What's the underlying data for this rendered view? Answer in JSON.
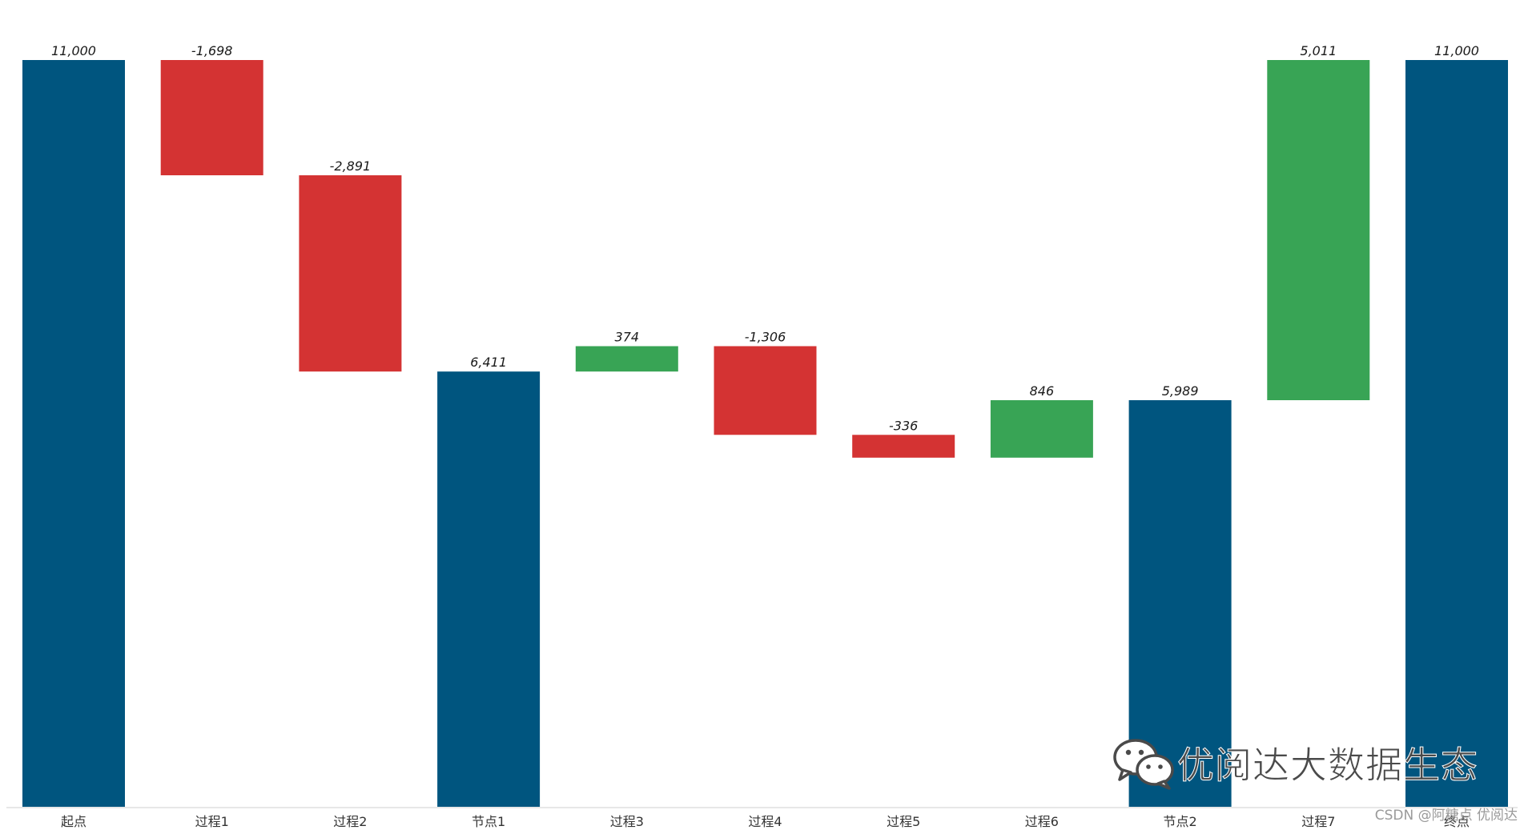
{
  "chart_data": {
    "type": "bar",
    "subtype": "waterfall",
    "categories": [
      "起点",
      "过程1",
      "过程2",
      "节点1",
      "过程3",
      "过程4",
      "过程5",
      "过程6",
      "节点2",
      "过程7",
      "终点"
    ],
    "values": [
      11000,
      -1698,
      -2891,
      6411,
      374,
      -1306,
      -336,
      846,
      5989,
      5011,
      11000
    ],
    "value_labels": [
      "11,000",
      "-1,698",
      "-2,891",
      "6,411",
      "374",
      "-1,306",
      "-336",
      "846",
      "5,989",
      "5,011",
      "11,000"
    ],
    "kinds": [
      "total",
      "delta",
      "delta",
      "total",
      "delta",
      "delta",
      "delta",
      "delta",
      "total",
      "delta",
      "total"
    ],
    "ylim": [
      0,
      11000
    ],
    "grid": false,
    "legend": "none",
    "colors": {
      "total": "#00557f",
      "increase": "#38a455",
      "decrease": "#d43333"
    }
  },
  "watermark": {
    "text": "优阅达大数据生态",
    "icon": "wechat-icon"
  },
  "credit": "CSDN @阿糖点 优阅达"
}
